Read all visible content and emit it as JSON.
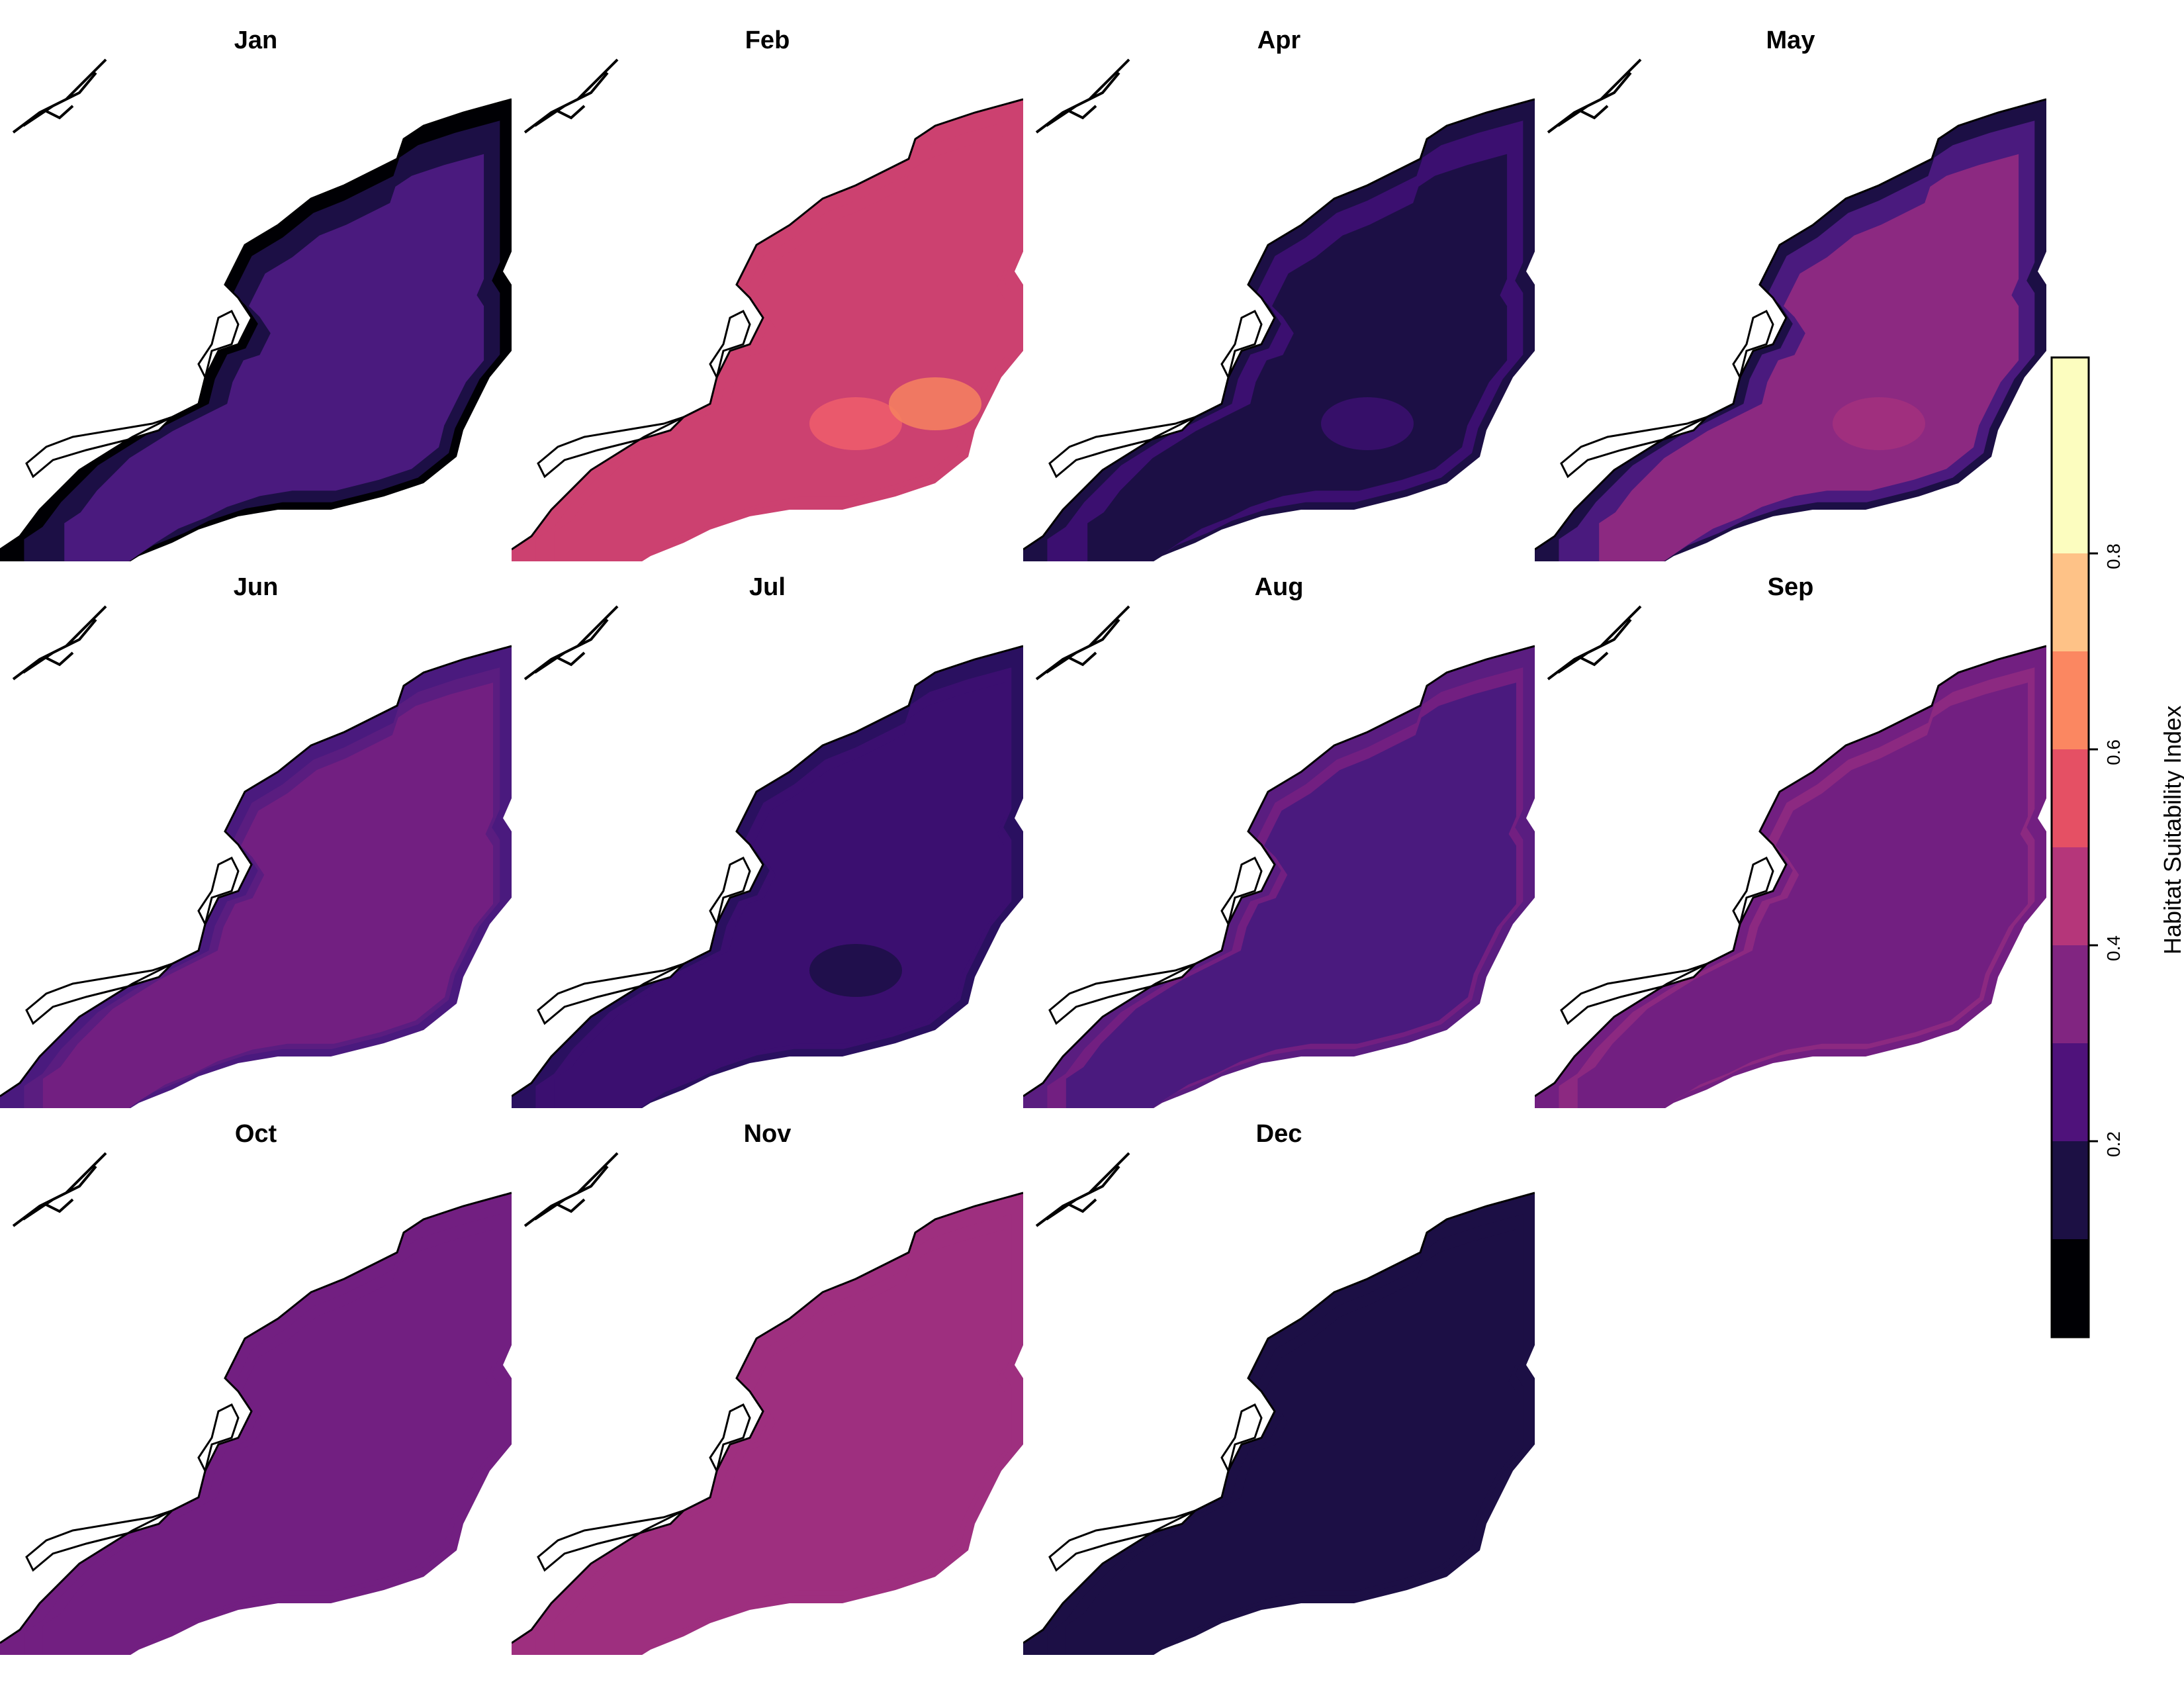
{
  "figure": {
    "panels": [
      {
        "month": "Jan",
        "base": "#4a1a7e",
        "coastal": "#000004",
        "mid": "#1c0f45",
        "ring_width": 3,
        "hotspots": []
      },
      {
        "month": "Feb",
        "base": "#cc4170",
        "coastal": "#cc4170",
        "mid": "#cc4170",
        "ring_width": 0,
        "hotspots": [
          "#ee5e6b",
          "#f6835f"
        ]
      },
      {
        "month": "Apr",
        "base": "#1c0f45",
        "coastal": "#1c0f45",
        "mid": "#3b0f70",
        "ring_width": 2,
        "hotspots": [
          "#3b0f70"
        ]
      },
      {
        "month": "May",
        "base": "#8c2981",
        "coastal": "#1c0f45",
        "mid": "#4a1a7e",
        "ring_width": 2,
        "hotspots": [
          "#a3307e"
        ]
      },
      {
        "month": "Jun",
        "base": "#721f81",
        "coastal": "#4a1a7e",
        "mid": "#5a1d80",
        "ring_width": 1,
        "hotspots": []
      },
      {
        "month": "Jul",
        "base": "#3b0f70",
        "coastal": "#2a1060",
        "mid": "#3b0f70",
        "ring_width": 1,
        "hotspots": [
          "#1c0f45"
        ]
      },
      {
        "month": "Aug",
        "base": "#4a1a7e",
        "coastal": "#5a1d80",
        "mid": "#721f81",
        "ring_width": 1,
        "hotspots": []
      },
      {
        "month": "Sep",
        "base": "#721f81",
        "coastal": "#721f81",
        "mid": "#8c2981",
        "ring_width": 1,
        "hotspots": []
      },
      {
        "month": "Oct",
        "base": "#721f81",
        "coastal": "#721f81",
        "mid": "#721f81",
        "ring_width": 0,
        "hotspots": []
      },
      {
        "month": "Nov",
        "base": "#9e2f7f",
        "coastal": "#9e2f7f",
        "mid": "#9e2f7f",
        "ring_width": 0,
        "hotspots": []
      },
      {
        "month": "Dec",
        "base": "#1c0f45",
        "coastal": "#1c0f45",
        "mid": "#1c0f45",
        "ring_width": 0,
        "hotspots": []
      }
    ]
  },
  "legend": {
    "title": "Habitat Suitability Index",
    "breaks": [
      0.0,
      0.1,
      0.2,
      0.3,
      0.4,
      0.5,
      0.6,
      0.7,
      0.8,
      0.9,
      1.0
    ],
    "colors": [
      "#000004",
      "#1c1044",
      "#4f127b",
      "#812581",
      "#b5367a",
      "#e55064",
      "#fb8761",
      "#fec287",
      "#fcfdbf",
      "#fcfdbf"
    ],
    "tick_labels": [
      "0.2",
      "0.4",
      "0.6",
      "0.8"
    ],
    "tick_values": [
      0.2,
      0.4,
      0.6,
      0.8
    ]
  }
}
